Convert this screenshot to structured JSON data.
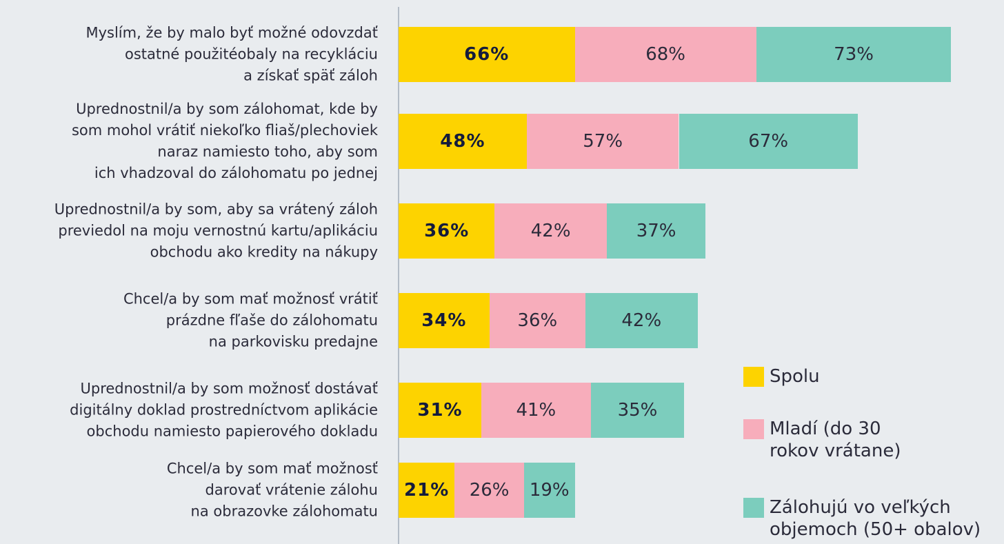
{
  "chart_data": {
    "type": "stacked-bar-horizontal",
    "categories": [
      "Myslím, že by malo byť možné odovzdať\nostatné použitéobaly na recykláciu\na získať späť záloh",
      "Uprednostnil/a by som zálohomat, kde by\nsom mohol vrátiť niekoľko fliaš/plechoviek\nnaraz namiesto toho, aby som\nich vhadzoval do zálohomatu po jednej",
      "Uprednostnil/a by som, aby sa vrátený záloh\npreviedol na moju vernostnú kartu/aplikáciu\nobchodu ako kredity na nákupy",
      "Chcel/a by som mať možnosť vrátiť\nprázdne fľaše do zálohomatu\nna parkovisku predajne",
      "Uprednostnil/a by som možnosť dostávať\ndigitálny doklad prostredníctvom aplikácie\nobchodu namiesto papierového dokladu",
      "Chcel/a by som mať možnosť\ndarovať vrátenie zálohu\nna obrazovke zálohomatu"
    ],
    "series": [
      {
        "name": "Spolu",
        "color": "#fdd300",
        "values": [
          66,
          48,
          36,
          34,
          31,
          21
        ],
        "value_labels": [
          "66%",
          "48%",
          "36%",
          "34%",
          "31%",
          "21%"
        ]
      },
      {
        "name": "Mladí (do 30\nrokov vrátane)",
        "color": "#f7adbb",
        "values": [
          68,
          57,
          42,
          36,
          41,
          26
        ],
        "value_labels": [
          "68%",
          "57%",
          "42%",
          "36%",
          "41%",
          "26%"
        ]
      },
      {
        "name": "Zálohujú vo veľkých\nobjemoch (50+ obalov)",
        "color": "#7ccdbd",
        "values": [
          73,
          67,
          37,
          42,
          35,
          19
        ],
        "value_labels": [
          "73%",
          "67%",
          "37%",
          "42%",
          "35%",
          "19%"
        ]
      }
    ],
    "xlim": [
      0,
      210
    ]
  }
}
